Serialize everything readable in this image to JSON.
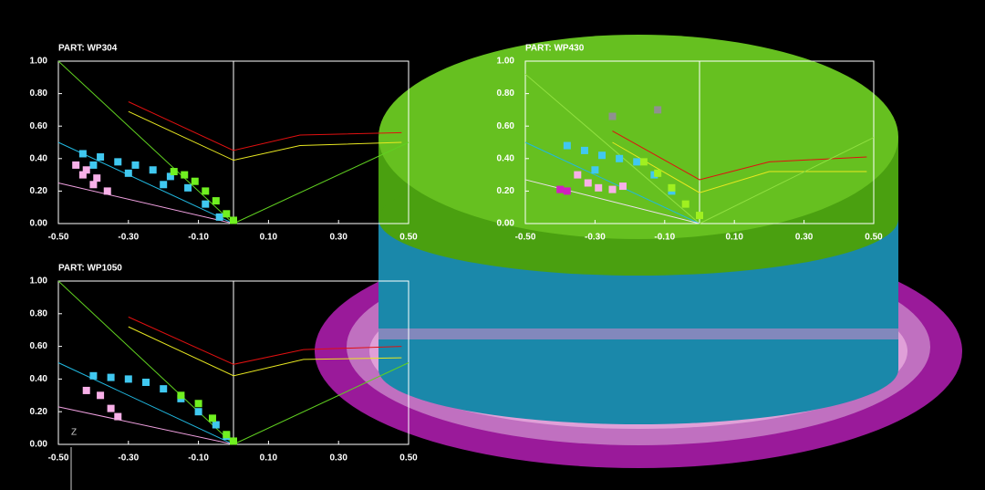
{
  "chart_data": [
    {
      "type": "line",
      "title": "PART:   WP304",
      "xlim": [
        -0.5,
        0.5
      ],
      "ylim": [
        0,
        1
      ],
      "xticks": [
        {
          "value": -0.5,
          "label": "-0.50"
        },
        {
          "value": -0.3,
          "label": "-0.30"
        },
        {
          "value": -0.1,
          "label": "-0.10"
        },
        {
          "value": 0.1,
          "label": "0.10"
        },
        {
          "value": 0.3,
          "label": "0.30"
        },
        {
          "value": 0.5,
          "label": "0.50"
        }
      ],
      "yticks": [
        {
          "value": 0,
          "label": "0.00"
        },
        {
          "value": 0.2,
          "label": "0.20"
        },
        {
          "value": 0.4,
          "label": "0.40"
        },
        {
          "value": 0.6,
          "label": "0.60"
        },
        {
          "value": 0.8,
          "label": "0.80"
        },
        {
          "value": 1,
          "label": "1.00"
        }
      ],
      "series": [
        {
          "mode": "line",
          "color": "#e01010",
          "x": [
            -0.3,
            0,
            0.19,
            0.48
          ],
          "values": [
            0.75,
            0.45,
            0.545,
            0.56
          ]
        },
        {
          "mode": "line",
          "color": "#e8e820",
          "x": [
            -0.3,
            0,
            0.19,
            0.48
          ],
          "values": [
            0.69,
            0.39,
            0.48,
            0.5
          ]
        },
        {
          "mode": "line",
          "color": "#60d020",
          "x": [
            -0.5,
            0,
            0.5
          ],
          "values": [
            1,
            0,
            0.5
          ]
        },
        {
          "mode": "line",
          "color": "#20b8e0",
          "x": [
            -0.5,
            0
          ],
          "values": [
            0.5,
            0
          ]
        },
        {
          "mode": "line",
          "color": "#f0a0e0",
          "x": [
            -0.5,
            0
          ],
          "values": [
            0.25,
            0
          ]
        },
        {
          "mode": "scatter",
          "color": "#40c8f0",
          "x": [
            -0.43,
            -0.38,
            -0.33,
            -0.28,
            -0.23,
            -0.18,
            -0.13,
            -0.08,
            -0.04,
            -0.4,
            -0.3,
            -0.2
          ],
          "values": [
            0.43,
            0.41,
            0.38,
            0.36,
            0.33,
            0.29,
            0.22,
            0.12,
            0.04,
            0.36,
            0.31,
            0.24
          ]
        },
        {
          "mode": "scatter",
          "color": "#f8b0e8",
          "x": [
            -0.45,
            -0.42,
            -0.39,
            -0.36,
            -0.43,
            -0.4
          ],
          "values": [
            0.36,
            0.33,
            0.28,
            0.2,
            0.3,
            0.24
          ]
        },
        {
          "mode": "scatter",
          "color": "#70f020",
          "x": [
            -0.17,
            -0.14,
            -0.11,
            -0.08,
            -0.05,
            -0.02,
            0
          ],
          "values": [
            0.32,
            0.3,
            0.26,
            0.2,
            0.14,
            0.06,
            0.02
          ]
        }
      ]
    },
    {
      "type": "line",
      "title": "PART:   WP430",
      "xlim": [
        -0.5,
        0.5
      ],
      "ylim": [
        0,
        1
      ],
      "xticks": [
        {
          "value": -0.5,
          "label": "-0.50"
        },
        {
          "value": -0.3,
          "label": "-0.30"
        },
        {
          "value": -0.1,
          "label": "-0.10"
        },
        {
          "value": 0.1,
          "label": "0.10"
        },
        {
          "value": 0.3,
          "label": "0.30"
        },
        {
          "value": 0.5,
          "label": "0.50"
        }
      ],
      "yticks": [
        {
          "value": 0,
          "label": "0.00"
        },
        {
          "value": 0.2,
          "label": "0.20"
        },
        {
          "value": 0.4,
          "label": "0.40"
        },
        {
          "value": 0.6,
          "label": "0.60"
        },
        {
          "value": 0.8,
          "label": "0.80"
        },
        {
          "value": 1,
          "label": "1.00"
        }
      ],
      "series": [
        {
          "mode": "line",
          "color": "#e01010",
          "x": [
            -0.25,
            0,
            0.2,
            0.48
          ],
          "values": [
            0.57,
            0.27,
            0.38,
            0.41
          ]
        },
        {
          "mode": "line",
          "color": "#e8e820",
          "x": [
            -0.25,
            0,
            0.2,
            0.48
          ],
          "values": [
            0.5,
            0.19,
            0.32,
            0.32
          ]
        },
        {
          "mode": "line",
          "color": "#90e040",
          "x": [
            -0.5,
            0,
            0.5
          ],
          "values": [
            0.92,
            0,
            0.53
          ]
        },
        {
          "mode": "line",
          "color": "#20b8e0",
          "x": [
            -0.5,
            0
          ],
          "values": [
            0.5,
            0
          ]
        },
        {
          "mode": "line",
          "color": "#f0e0f0",
          "x": [
            -0.5,
            0
          ],
          "values": [
            0.27,
            0
          ]
        },
        {
          "mode": "scatter",
          "color": "#40c8f0",
          "x": [
            -0.38,
            -0.33,
            -0.28,
            -0.23,
            -0.18,
            -0.13,
            -0.08,
            -0.3
          ],
          "values": [
            0.48,
            0.45,
            0.42,
            0.4,
            0.38,
            0.3,
            0.2,
            0.33
          ]
        },
        {
          "mode": "scatter",
          "color": "#f8b0e8",
          "x": [
            -0.35,
            -0.32,
            -0.29,
            -0.25,
            -0.22
          ],
          "values": [
            0.3,
            0.25,
            0.22,
            0.21,
            0.23
          ]
        },
        {
          "mode": "scatter",
          "color": "#d020c0",
          "x": [
            -0.4,
            -0.38
          ],
          "values": [
            0.21,
            0.2
          ]
        },
        {
          "mode": "scatter",
          "color": "#a0f020",
          "x": [
            -0.16,
            -0.12,
            -0.08,
            -0.04,
            0
          ],
          "values": [
            0.38,
            0.31,
            0.22,
            0.12,
            0.05
          ]
        },
        {
          "mode": "scatter",
          "color": "#909090",
          "x": [
            -0.25,
            -0.12
          ],
          "values": [
            0.66,
            0.7
          ]
        }
      ]
    },
    {
      "type": "line",
      "title": "PART:   WP1050",
      "xlim": [
        -0.5,
        0.5
      ],
      "ylim": [
        0,
        1
      ],
      "xticks": [
        {
          "value": -0.5,
          "label": "-0.50"
        },
        {
          "value": -0.3,
          "label": "-0.30"
        },
        {
          "value": -0.1,
          "label": "-0.10"
        },
        {
          "value": 0.1,
          "label": "0.10"
        },
        {
          "value": 0.3,
          "label": "0.30"
        },
        {
          "value": 0.5,
          "label": "0.50"
        }
      ],
      "yticks": [
        {
          "value": 0,
          "label": "0.00"
        },
        {
          "value": 0.2,
          "label": "0.20"
        },
        {
          "value": 0.4,
          "label": "0.40"
        },
        {
          "value": 0.6,
          "label": "0.60"
        },
        {
          "value": 0.8,
          "label": "0.80"
        },
        {
          "value": 1,
          "label": "1.00"
        }
      ],
      "series": [
        {
          "mode": "line",
          "color": "#e01010",
          "x": [
            -0.3,
            0,
            0.2,
            0.48
          ],
          "values": [
            0.78,
            0.49,
            0.58,
            0.6
          ]
        },
        {
          "mode": "line",
          "color": "#e8e820",
          "x": [
            -0.3,
            0,
            0.2,
            0.48
          ],
          "values": [
            0.72,
            0.42,
            0.52,
            0.53
          ]
        },
        {
          "mode": "line",
          "color": "#60d020",
          "x": [
            -0.5,
            0,
            0.5
          ],
          "values": [
            1,
            0,
            0.5
          ]
        },
        {
          "mode": "line",
          "color": "#20b8e0",
          "x": [
            -0.5,
            0
          ],
          "values": [
            0.5,
            0
          ]
        },
        {
          "mode": "line",
          "color": "#f0a0e0",
          "x": [
            -0.5,
            0
          ],
          "values": [
            0.23,
            0
          ]
        },
        {
          "mode": "scatter",
          "color": "#40c8f0",
          "x": [
            -0.4,
            -0.35,
            -0.3,
            -0.25,
            -0.2,
            -0.15,
            -0.1,
            -0.05,
            -0.02
          ],
          "values": [
            0.42,
            0.41,
            0.4,
            0.38,
            0.34,
            0.28,
            0.2,
            0.12,
            0.05
          ]
        },
        {
          "mode": "scatter",
          "color": "#f8b0e8",
          "x": [
            -0.42,
            -0.38,
            -0.35,
            -0.33
          ],
          "values": [
            0.33,
            0.3,
            0.22,
            0.17
          ]
        },
        {
          "mode": "scatter",
          "color": "#70f020",
          "x": [
            -0.15,
            -0.1,
            -0.06,
            -0.02,
            0
          ],
          "values": [
            0.3,
            0.25,
            0.16,
            0.06,
            0.02
          ]
        }
      ]
    }
  ],
  "triad_label": "Z"
}
